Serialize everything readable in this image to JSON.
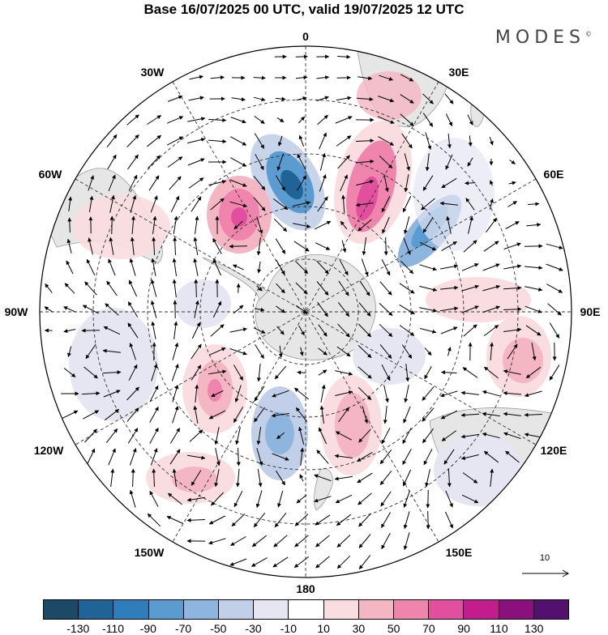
{
  "title": "Base 16/07/2025 00 UTC, valid 19/07/2025 12 UTC",
  "logo": {
    "text": "MODES",
    "mark": "©"
  },
  "longitude_labels": {
    "lon_0": "0",
    "lon_30e": "30E",
    "lon_60e": "60E",
    "lon_90e": "90E",
    "lon_120e": "120E",
    "lon_150e": "150E",
    "lon_180": "180",
    "lon_150w": "150W",
    "lon_120w": "120W",
    "lon_90w": "90W",
    "lon_60w": "60W",
    "lon_30w": "30W"
  },
  "reference_vector": {
    "label": "10"
  },
  "colorbar": {
    "colors": [
      "#1c4a66",
      "#1f6397",
      "#2f7dbb",
      "#5a9cd0",
      "#8eb5dd",
      "#c2cfe8",
      "#e6e6f3",
      "#ffffff",
      "#f9dde0",
      "#f5b6c3",
      "#ef84ad",
      "#e34f9f",
      "#c31c8c",
      "#8b0f7d",
      "#54106e"
    ],
    "labels": [
      "-130",
      "-110",
      "-90",
      "-70",
      "-50",
      "-30",
      "-10",
      "10",
      "30",
      "50",
      "70",
      "90",
      "110",
      "130"
    ]
  },
  "colors": {
    "land": "#e6e6e6",
    "land_edge": "#a0a0a0",
    "grid": "#333333"
  }
}
